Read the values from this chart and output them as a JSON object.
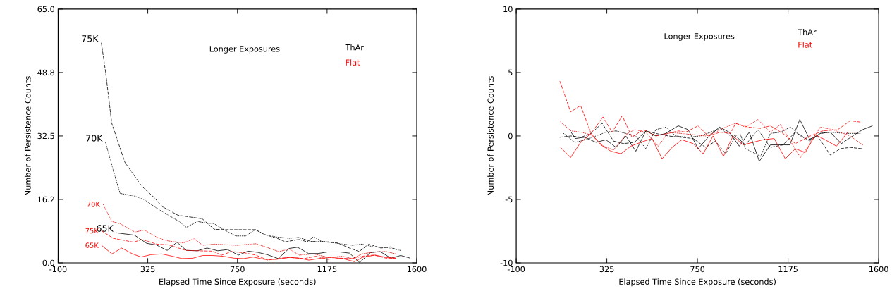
{
  "chart_data": [
    {
      "type": "line",
      "xlabel": "Elapsed Time Since Exposure (seconds)",
      "ylabel": "Number of Persistence Counts",
      "xlim": [
        -100,
        1600
      ],
      "ylim": [
        0,
        65
      ],
      "xticks": [
        -100,
        325,
        750,
        1175,
        1600
      ],
      "yticks": [
        {
          "value": 0,
          "label": "0.0"
        },
        {
          "value": 16.25,
          "label": "16.2"
        },
        32.5,
        {
          "value": 48.75,
          "label": "48.8"
        },
        {
          "value": 65,
          "label": "65.0"
        }
      ],
      "annotations": [
        "Longer Exposures",
        "ThAr",
        "Flat"
      ],
      "series": [
        {
          "name": "75K",
          "color": "#000000",
          "line_style": "dashed",
          "x": [
            105,
            125,
            154,
            216,
            297,
            354,
            394,
            468,
            583,
            640,
            697,
            835,
            881,
            938,
            978,
            1041,
            1081,
            1110,
            1155,
            1224,
            1281,
            1327,
            1373,
            1430,
            1476,
            1499
          ],
          "values": [
            56.3,
            48.9,
            35.8,
            25.8,
            19.6,
            16.8,
            14.4,
            12.2,
            11.3,
            8.6,
            8.5,
            8.5,
            7.2,
            6.3,
            5.4,
            6.0,
            5.4,
            6.7,
            5.4,
            5.1,
            3.8,
            2.9,
            4.8,
            3.8,
            4.1,
            3.5
          ]
        },
        {
          "name": "70K",
          "color": "#000000",
          "line_style": "dotted",
          "x": [
            125,
            165,
            194,
            262,
            308,
            365,
            423,
            474,
            508,
            560,
            594,
            640,
            686,
            743,
            789,
            835,
            881,
            938,
            995,
            1041,
            1098,
            1167,
            1224,
            1293,
            1339,
            1396,
            1453,
            1522
          ],
          "values": [
            30.8,
            23.0,
            17.8,
            17.1,
            16.2,
            14.1,
            12.2,
            10.6,
            9.1,
            10.6,
            10.3,
            10.0,
            8.5,
            6.9,
            6.9,
            8.5,
            7.2,
            6.6,
            6.3,
            6.5,
            5.5,
            5.5,
            5.0,
            4.5,
            4.8,
            4.1,
            4.0,
            3.2
          ]
        },
        {
          "name": "65K",
          "color": "#000000",
          "line_style": "solid",
          "x": [
            176,
            262,
            320,
            365,
            417,
            463,
            508,
            560,
            606,
            657,
            703,
            755,
            800,
            846,
            892,
            943,
            995,
            1035,
            1087,
            1132,
            1178,
            1235,
            1281,
            1329,
            1380,
            1426,
            1478,
            1524,
            1570
          ],
          "values": [
            7.7,
            7.1,
            5.0,
            4.6,
            3.2,
            5.3,
            3.2,
            3.1,
            3.8,
            3.1,
            3.4,
            2.0,
            3.0,
            2.7,
            2.1,
            1.1,
            3.7,
            4.0,
            2.4,
            2.4,
            2.8,
            2.8,
            2.5,
            0.1,
            2.6,
            2.9,
            1.2,
            1.9,
            1.2
          ]
        },
        {
          "name": "70K",
          "color": "#ff0000",
          "line_style": "dotted",
          "x": [
            113,
            155,
            195,
            264,
            310,
            367,
            413,
            493,
            545,
            585,
            642,
            745,
            837,
            883,
            945,
            997,
            1043,
            1112,
            1180,
            1249,
            1295,
            1341,
            1398,
            1455,
            1501
          ],
          "values": [
            15.0,
            10.6,
            10.0,
            7.9,
            8.4,
            6.6,
            5.7,
            5.1,
            6.2,
            4.5,
            4.8,
            4.5,
            4.9,
            4.1,
            2.9,
            3.5,
            2.0,
            2.3,
            1.4,
            1.7,
            1.1,
            2.3,
            2.8,
            2.9,
            2.3
          ]
        },
        {
          "name": "75K",
          "color": "#ff0000",
          "line_style": "dashed",
          "x": [
            106,
            161,
            258,
            298,
            367,
            425,
            505,
            562,
            631,
            676,
            722,
            780,
            837,
            894,
            951,
            997,
            1066,
            1123,
            1180,
            1238,
            1295,
            1341,
            1398,
            1455,
            1501
          ],
          "values": [
            8.2,
            6.3,
            5.3,
            6.0,
            4.8,
            4.6,
            3.2,
            3.1,
            3.0,
            2.0,
            2.9,
            2.6,
            2.0,
            0.7,
            1.2,
            1.4,
            1.1,
            1.7,
            0.9,
            1.2,
            1.1,
            1.7,
            2.0,
            1.2,
            1.2
          ]
        },
        {
          "name": "65K",
          "color": "#ff0000",
          "line_style": "solid",
          "x": [
            106,
            155,
            201,
            253,
            293,
            339,
            390,
            442,
            487,
            539,
            585,
            631,
            682,
            734,
            780,
            825,
            877,
            934,
            997,
            1043,
            1089,
            1146,
            1197,
            1249,
            1306,
            1341,
            1403,
            1455,
            1501
          ],
          "values": [
            4.5,
            2.3,
            3.8,
            2.3,
            1.5,
            2.1,
            2.3,
            1.7,
            1.1,
            1.2,
            1.9,
            1.9,
            1.7,
            1.2,
            1.1,
            1.5,
            0.9,
            0.9,
            1.4,
            1.2,
            0.7,
            1.2,
            1.4,
            1.1,
            0.3,
            1.4,
            2.0,
            1.4,
            1.2
          ]
        }
      ]
    },
    {
      "type": "line",
      "xlabel": "Elapsed Time Since Exposure (seconds)",
      "ylabel": "Number of Persistence Counts",
      "xlim": [
        -100,
        1600
      ],
      "ylim": [
        -10,
        10
      ],
      "xticks": [
        -100,
        325,
        750,
        1175,
        1600
      ],
      "yticks": [
        -10,
        -5,
        0,
        5,
        10
      ],
      "annotations": [
        "Longer Exposures",
        "ThAr",
        "Flat"
      ],
      "series": [
        {
          "color": "#000000",
          "line_style": "dashed",
          "x": [
            105,
            157,
            204,
            251,
            303,
            356,
            403,
            455,
            508,
            555,
            613,
            671,
            730,
            788,
            835,
            882,
            929,
            975,
            1034,
            1092,
            1151,
            1209,
            1268,
            1314,
            1373,
            1420,
            1466,
            1519
          ],
          "values": [
            -0.1,
            0,
            -0.1,
            0.2,
            1.0,
            -0.4,
            -0.6,
            -0.5,
            0.4,
            0.2,
            0,
            -0.1,
            -0.2,
            -0.9,
            -0.4,
            -1.4,
            0,
            -0.7,
            0.5,
            -0.9,
            -0.7,
            0.3,
            -0.3,
            0,
            -1.5,
            -1.0,
            -0.9,
            -1.0
          ]
        },
        {
          "color": "#000000",
          "line_style": "dotted",
          "x": [
            122,
            175,
            227,
            274,
            321,
            368,
            414,
            461,
            508,
            555,
            601,
            648,
            706,
            765,
            812,
            858,
            905,
            952,
            975,
            1046,
            1092,
            1139,
            1186,
            1233,
            1279,
            1326,
            1373,
            1443,
            1513
          ],
          "values": [
            0.2,
            -0.5,
            -0.3,
            0,
            0.3,
            0.4,
            0.2,
            0,
            -1.0,
            0.5,
            0.7,
            0,
            -0.1,
            0,
            0.3,
            0.6,
            0,
            0.1,
            -1.0,
            -1.6,
            0.2,
            0.3,
            0.7,
            0,
            -0.4,
            0.2,
            0.3,
            0.2,
            0.2
          ]
        },
        {
          "color": "#000000",
          "line_style": "solid",
          "x": [
            157,
            178,
            221,
            274,
            321,
            368,
            414,
            461,
            508,
            555,
            601,
            660,
            706,
            753,
            800,
            853,
            899,
            946,
            993,
            1040,
            1092,
            1139,
            1183,
            1230,
            1277,
            1326,
            1373,
            1425,
            1478,
            1525,
            1571
          ],
          "values": [
            0.3,
            -0.2,
            -0.1,
            -0.5,
            -0.3,
            -0.9,
            0,
            -1.2,
            0.4,
            0,
            0.2,
            0.8,
            0.5,
            -1.0,
            -0.1,
            0.7,
            0.3,
            -0.8,
            0.3,
            -2.0,
            -0.7,
            -0.7,
            -0.7,
            1.3,
            -0.3,
            0.2,
            0.3,
            -0.6,
            0,
            0.5,
            0.8
          ]
        },
        {
          "color": "#ff0000",
          "line_style": "dotted",
          "x": [
            108,
            157,
            204,
            251,
            309,
            356,
            414,
            455,
            508,
            566,
            613,
            671,
            730,
            788,
            835,
            882,
            929,
            975,
            1034,
            1092,
            1139,
            1186,
            1233,
            1279,
            1326,
            1385,
            1466,
            1525
          ],
          "values": [
            1.1,
            0.4,
            0.3,
            0.1,
            -0.8,
            -1.1,
            0.1,
            0.5,
            0.3,
            -0.8,
            0.3,
            0.2,
            0.1,
            0,
            0.3,
            0.7,
            1.0,
            0.7,
            1.3,
            0.3,
            0.9,
            -0.4,
            -1.7,
            -0.6,
            0.7,
            0.5,
            0,
            -0.7
          ]
        },
        {
          "color": "#ff0000",
          "line_style": "dashed",
          "x": [
            105,
            155,
            202,
            251,
            307,
            350,
            397,
            443,
            496,
            555,
            613,
            660,
            695,
            753,
            800,
            858,
            905,
            929,
            987,
            1046,
            1092,
            1151,
            1209,
            1279,
            1338,
            1408,
            1466,
            1513
          ],
          "values": [
            4.3,
            1.9,
            2.4,
            0.2,
            1.5,
            0.3,
            1.6,
            -0.1,
            0.5,
            0,
            0.2,
            0.4,
            0.3,
            0.8,
            0,
            0.3,
            0.2,
            1.0,
            0.7,
            0.6,
            0.8,
            0.2,
            -0.6,
            0,
            0.4,
            0.5,
            1.2,
            1.1
          ]
        },
        {
          "color": "#ff0000",
          "line_style": "solid",
          "x": [
            108,
            155,
            202,
            251,
            297,
            344,
            391,
            438,
            484,
            537,
            584,
            631,
            677,
            730,
            777,
            823,
            872,
            917,
            964,
            1010,
            1057,
            1110,
            1162,
            1209,
            1256,
            1303,
            1349,
            1402,
            1455,
            1501
          ],
          "values": [
            -0.9,
            -1.7,
            -0.5,
            0.2,
            -0.7,
            -1.2,
            -1.4,
            -0.8,
            -0.5,
            -0.2,
            -1.8,
            -0.9,
            -0.3,
            -0.6,
            -1.4,
            0,
            -1.6,
            0,
            -0.7,
            -0.5,
            -0.3,
            -0.2,
            -1.8,
            -1.0,
            -1.3,
            0.1,
            -0.3,
            -0.8,
            0.3,
            0.3
          ]
        }
      ]
    }
  ]
}
